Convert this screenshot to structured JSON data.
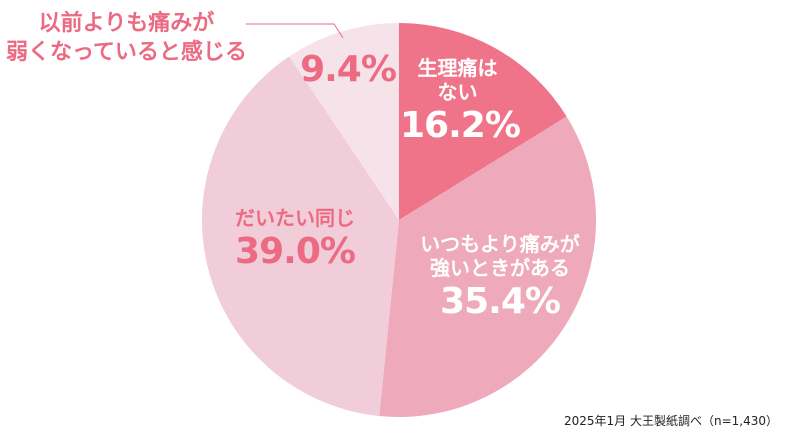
{
  "chart_data": {
    "type": "pie",
    "title": "",
    "start": "top",
    "direction": "clockwise",
    "slices": [
      {
        "label": "生理痛はない",
        "label_lines": [
          "生理痛は",
          "ない"
        ],
        "value": 16.2,
        "display": "16.2%",
        "color": "#f07489",
        "text_color": "#ffffff"
      },
      {
        "label": "いつもより痛みが強いときがある",
        "label_lines": [
          "いつもより痛みが",
          "強いときがある"
        ],
        "value": 35.4,
        "display": "35.4%",
        "color": "#eeaabb",
        "text_color": "#ffffff"
      },
      {
        "label": "だいたい同じ",
        "label_lines": [
          "だいたい同じ"
        ],
        "value": 39.0,
        "display": "39.0%",
        "color": "#f0cdd9",
        "text_color": "#ec6a82"
      },
      {
        "label": "以前よりも痛みが弱くなっていると感じる",
        "label_lines": [
          "以前よりも痛みが",
          "弱くなっていると感じる"
        ],
        "value": 9.4,
        "display": "9.4%",
        "color": "#f5e3e9",
        "text_color": "#ec6a82"
      }
    ],
    "source": "2025年1月 大王製紙調べ（n=1,430）"
  }
}
